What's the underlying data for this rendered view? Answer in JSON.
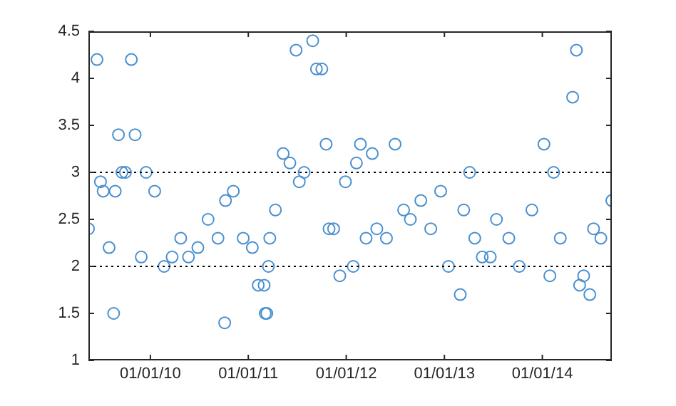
{
  "chart_data": {
    "type": "scatter",
    "marker": "circle",
    "grid": false,
    "legend": false,
    "xlim": [
      "2009-05-15",
      "2014-09-17"
    ],
    "xticks": [
      {
        "value": "2010-01-01",
        "label": "01/01/10"
      },
      {
        "value": "2011-01-01",
        "label": "01/01/11"
      },
      {
        "value": "2012-01-01",
        "label": "01/01/12"
      },
      {
        "value": "2013-01-01",
        "label": "01/01/13"
      },
      {
        "value": "2014-01-01",
        "label": "01/01/14"
      }
    ],
    "ylim": [
      1,
      4.5
    ],
    "yticks": [
      1,
      1.5,
      2,
      2.5,
      3,
      3.5,
      4,
      4.5
    ],
    "ref_lines": [
      {
        "axis": "y",
        "value": 2,
        "color": "#000000",
        "line_style": "dotted"
      },
      {
        "axis": "y",
        "value": 3,
        "color": "#000000",
        "line_style": "dotted"
      }
    ],
    "x": [
      "2009-05-15",
      "2009-06-16",
      "2009-06-29",
      "2009-07-09",
      "2009-07-31",
      "2009-08-17",
      "2009-08-23",
      "2009-09-04",
      "2009-09-17",
      "2009-09-30",
      "2009-10-22",
      "2009-11-05",
      "2009-11-28",
      "2009-12-16",
      "2010-01-17",
      "2010-02-21",
      "2010-03-23",
      "2010-04-24",
      "2010-05-23",
      "2010-06-27",
      "2010-08-04",
      "2010-09-10",
      "2010-10-05",
      "2010-10-08",
      "2010-11-06",
      "2010-12-13",
      "2011-01-16",
      "2011-02-07",
      "2011-03-01",
      "2011-03-05",
      "2011-03-11",
      "2011-03-17",
      "2011-03-22",
      "2011-04-12",
      "2011-05-11",
      "2011-06-05",
      "2011-06-28",
      "2011-07-10",
      "2011-07-28",
      "2011-08-29",
      "2011-09-12",
      "2011-10-02",
      "2011-10-18",
      "2011-10-29",
      "2011-11-15",
      "2011-12-08",
      "2011-12-29",
      "2012-01-27",
      "2012-02-08",
      "2012-02-23",
      "2012-03-15",
      "2012-04-07",
      "2012-04-24",
      "2012-05-30",
      "2012-07-01",
      "2012-08-02",
      "2012-08-27",
      "2012-10-05",
      "2012-11-11",
      "2012-12-18",
      "2013-01-16",
      "2013-03-01",
      "2013-03-14",
      "2013-04-05",
      "2013-04-24",
      "2013-05-22",
      "2013-06-21",
      "2013-07-14",
      "2013-08-29",
      "2013-10-07",
      "2013-11-23",
      "2014-01-07",
      "2014-01-29",
      "2014-02-12",
      "2014-03-09",
      "2014-04-24",
      "2014-05-08",
      "2014-05-20",
      "2014-06-04",
      "2014-06-27",
      "2014-07-11",
      "2014-08-07",
      "2014-09-17"
    ],
    "series": [
      {
        "color": "#4a90d0",
        "values": [
          2.4,
          4.2,
          2.9,
          2.8,
          2.2,
          1.5,
          2.8,
          3.4,
          3.0,
          3.0,
          4.2,
          3.4,
          2.1,
          3.0,
          2.8,
          2.0,
          2.1,
          2.3,
          2.1,
          2.2,
          2.5,
          2.3,
          1.4,
          2.7,
          2.8,
          2.3,
          2.2,
          1.8,
          1.8,
          1.5,
          1.5,
          2.0,
          2.3,
          2.6,
          3.2,
          3.1,
          4.3,
          2.9,
          3.0,
          4.4,
          4.1,
          4.1,
          3.3,
          2.4,
          2.4,
          1.9,
          2.9,
          2.0,
          3.1,
          3.3,
          2.3,
          3.2,
          2.4,
          2.3,
          3.3,
          2.6,
          2.5,
          2.7,
          2.4,
          2.8,
          2.0,
          1.7,
          2.6,
          3.0,
          2.3,
          2.1,
          2.1,
          2.5,
          2.3,
          2.0,
          2.6,
          3.3,
          1.9,
          3.0,
          2.3,
          3.8,
          4.3,
          1.8,
          1.9,
          1.7,
          2.4,
          2.3,
          2.7
        ]
      }
    ]
  }
}
